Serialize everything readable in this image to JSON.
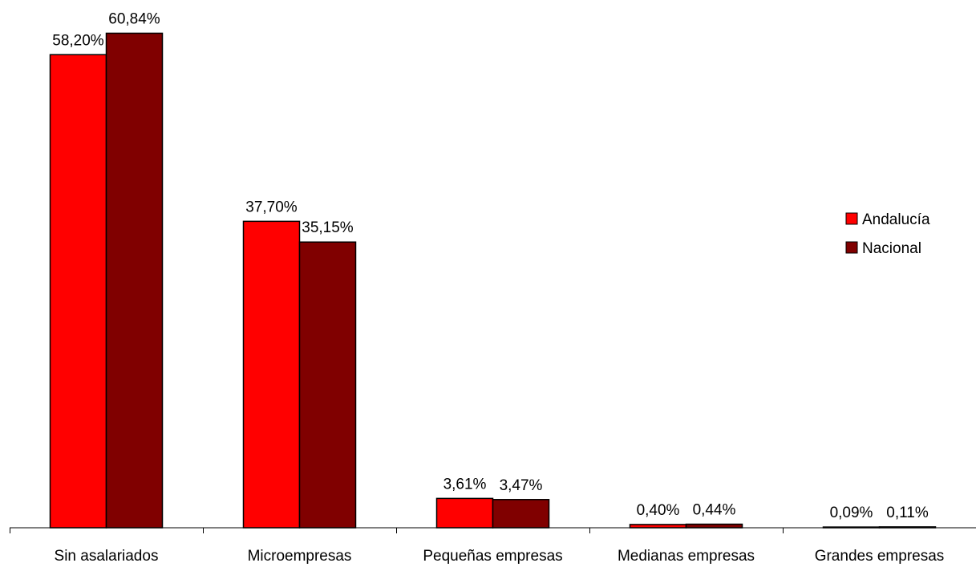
{
  "chart_data": {
    "type": "bar",
    "title": "",
    "xlabel": "",
    "ylabel": "",
    "categories": [
      "Sin asalariados",
      "Microempresas",
      "Pequeñas empresas",
      "Medianas empresas",
      "Grandes empresas"
    ],
    "series": [
      {
        "name": "Andalucía",
        "color": "#ff0000",
        "values": [
          58.2,
          37.7,
          3.61,
          0.4,
          0.09
        ],
        "labels": [
          "58,20%",
          "37,70%",
          "3,61%",
          "0,40%",
          "0,09%"
        ]
      },
      {
        "name": "Nacional",
        "color": "#800000",
        "values": [
          60.84,
          35.15,
          3.47,
          0.44,
          0.11
        ],
        "labels": [
          "60,84%",
          "35,15%",
          "3,47%",
          "0,44%",
          "0,11%"
        ]
      }
    ],
    "ylim": [
      0,
      62
    ],
    "grid": false,
    "legend": "right"
  }
}
